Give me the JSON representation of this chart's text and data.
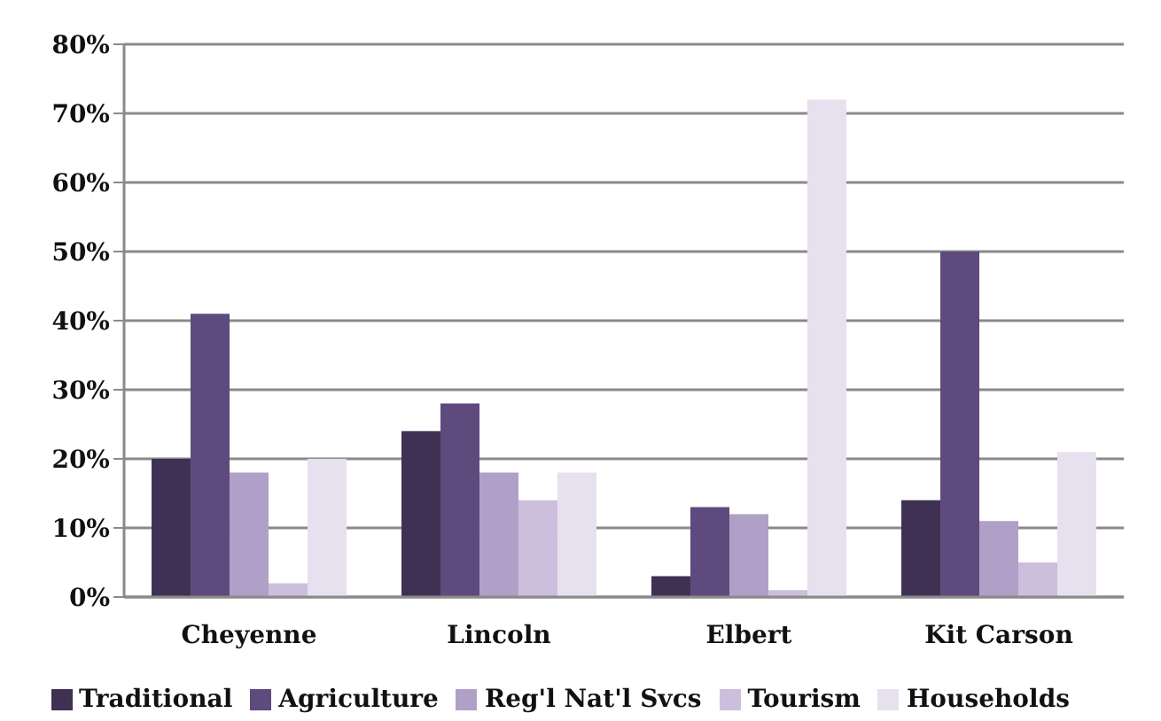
{
  "chart_data": {
    "type": "bar",
    "categories": [
      "Cheyenne",
      "Lincoln",
      "Elbert",
      "Kit Carson"
    ],
    "series": [
      {
        "name": "Traditional",
        "color": "#3f3153",
        "values": [
          20,
          24,
          3,
          14
        ]
      },
      {
        "name": "Agriculture",
        "color": "#5e4a7c",
        "values": [
          41,
          28,
          13,
          50
        ]
      },
      {
        "name": "Reg'l Nat'l Svcs",
        "color": "#b0a0c8",
        "values": [
          18,
          18,
          12,
          11
        ]
      },
      {
        "name": "Tourism",
        "color": "#cbbfdd",
        "values": [
          2,
          14,
          1,
          5
        ]
      },
      {
        "name": "Households",
        "color": "#e6e0ef",
        "values": [
          20,
          18,
          72,
          21
        ]
      }
    ],
    "ylim": [
      0,
      80
    ],
    "yticks": [
      {
        "value": 0,
        "label": "0%"
      },
      {
        "value": 10,
        "label": "10%"
      },
      {
        "value": 20,
        "label": "20%"
      },
      {
        "value": 30,
        "label": "30%"
      },
      {
        "value": 40,
        "label": "40%"
      },
      {
        "value": 50,
        "label": "50%"
      },
      {
        "value": 60,
        "label": "60%"
      },
      {
        "value": 70,
        "label": "70%"
      },
      {
        "value": 80,
        "label": "80%"
      }
    ],
    "grid": "y",
    "legend": "bottom"
  }
}
